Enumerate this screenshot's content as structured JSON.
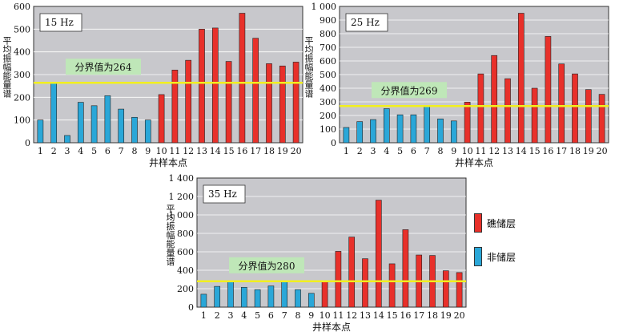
{
  "chart_data": [
    {
      "type": "bar",
      "title": "15 Hz",
      "xlabel": "井样本点",
      "ylabel": "平均振幅能量谱",
      "categories": [
        "1",
        "2",
        "3",
        "4",
        "5",
        "6",
        "7",
        "8",
        "9",
        "10",
        "11",
        "12",
        "13",
        "14",
        "15",
        "16",
        "17",
        "18",
        "19",
        "20"
      ],
      "values": [
        100,
        262,
        32,
        178,
        163,
        207,
        148,
        112,
        100,
        212,
        320,
        363,
        500,
        505,
        358,
        570,
        460,
        348,
        338,
        355
      ],
      "ylim": [
        0,
        600
      ],
      "yticks": [
        "0",
        "100",
        "200",
        "300",
        "400",
        "500",
        "600"
      ],
      "threshold": 264,
      "threshold_label": "分界值为264",
      "reservoir_flags": [
        0,
        0,
        0,
        0,
        0,
        0,
        0,
        0,
        0,
        1,
        1,
        1,
        1,
        1,
        1,
        1,
        1,
        1,
        1,
        1
      ],
      "grid": true
    },
    {
      "type": "bar",
      "title": "25 Hz",
      "xlabel": "井样本点",
      "ylabel": "平均振幅能量谱",
      "categories": [
        "1",
        "2",
        "3",
        "4",
        "5",
        "6",
        "7",
        "8",
        "9",
        "10",
        "11",
        "12",
        "13",
        "14",
        "15",
        "16",
        "17",
        "18",
        "19",
        "20"
      ],
      "values": [
        112,
        155,
        170,
        250,
        205,
        205,
        265,
        175,
        160,
        298,
        505,
        640,
        470,
        950,
        400,
        780,
        578,
        505,
        390,
        355
      ],
      "ylim": [
        0,
        1000
      ],
      "yticks": [
        "0",
        "100",
        "200",
        "300",
        "400",
        "500",
        "600",
        "700",
        "800",
        "900",
        "1 000"
      ],
      "threshold": 269,
      "threshold_label": "分界值为269",
      "reservoir_flags": [
        0,
        0,
        0,
        0,
        0,
        0,
        0,
        0,
        0,
        1,
        1,
        1,
        1,
        1,
        1,
        1,
        1,
        1,
        1,
        1
      ],
      "grid": true
    },
    {
      "type": "bar",
      "title": "35 Hz",
      "xlabel": "井样本点",
      "ylabel": "平均振幅能量谱",
      "categories": [
        "1",
        "2",
        "3",
        "4",
        "5",
        "6",
        "7",
        "8",
        "9",
        "10",
        "11",
        "12",
        "13",
        "14",
        "15",
        "16",
        "17",
        "18",
        "19",
        "20"
      ],
      "values": [
        140,
        225,
        275,
        215,
        190,
        230,
        275,
        190,
        150,
        280,
        605,
        760,
        525,
        1160,
        470,
        840,
        565,
        560,
        395,
        375
      ],
      "ylim": [
        0,
        1400
      ],
      "yticks": [
        "0",
        "200",
        "400",
        "600",
        "800",
        "1 000",
        "1 200",
        "1 400"
      ],
      "threshold": 280,
      "threshold_label": "分界值为280",
      "reservoir_flags": [
        0,
        0,
        0,
        0,
        0,
        0,
        0,
        0,
        0,
        1,
        1,
        1,
        1,
        1,
        1,
        1,
        1,
        1,
        1,
        1
      ],
      "grid": true
    }
  ],
  "legend": {
    "items": [
      {
        "label": "礁储层",
        "color": "#e8302a"
      },
      {
        "label": "非储层",
        "color": "#2aa7d8"
      }
    ]
  },
  "colors": {
    "reservoir": "#e8302a",
    "non_reservoir": "#2aa7d8",
    "plot_bg": "#c8c8cc",
    "threshold": "#f2ef1f",
    "label_bg": "#bfe7b8"
  }
}
